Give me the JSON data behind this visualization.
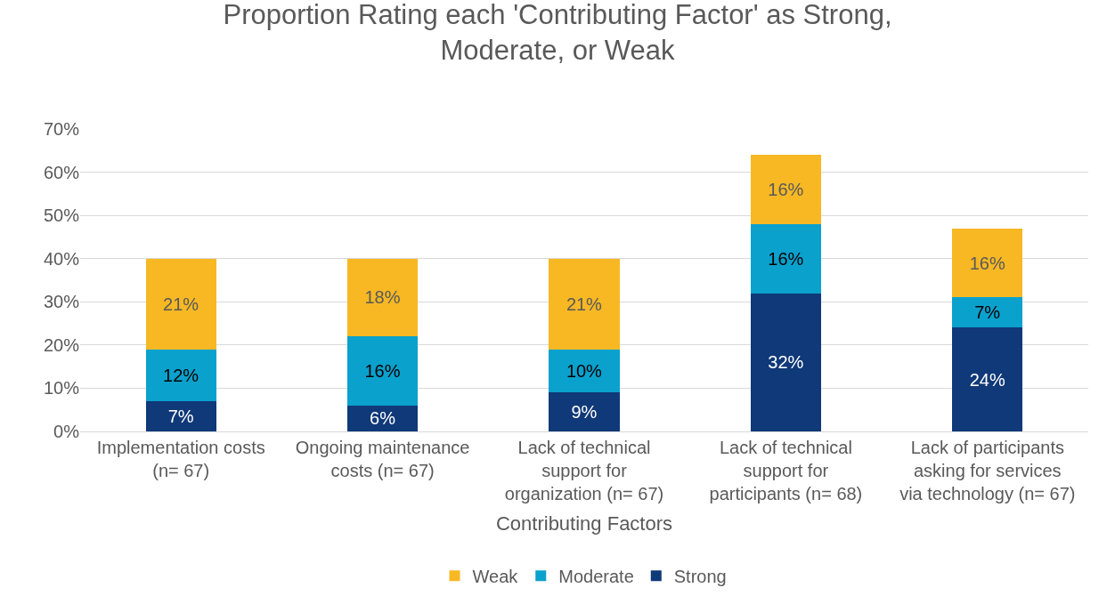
{
  "chart_data": {
    "type": "bar",
    "stacked": true,
    "title": "Proportion Rating each 'Contributing Factor' as Strong, Moderate, or Weak",
    "xlabel": "Contributing Factors",
    "categories": [
      "Implementation costs (n= 67)",
      "Ongoing maintenance costs (n= 67)",
      "Lack of technical support for organization (n= 67)",
      "Lack of technical support for participants (n= 68)",
      "Lack of participants asking for services via technology (n= 67)"
    ],
    "series": [
      {
        "name": "Strong",
        "color": "#0f3978",
        "values": [
          7,
          6,
          9,
          32,
          24
        ],
        "value_labels": [
          "7%",
          "6%",
          "9%",
          "32%",
          "24%"
        ]
      },
      {
        "name": "Moderate",
        "color": "#0aa1cd",
        "values": [
          12,
          16,
          10,
          16,
          7
        ],
        "value_labels": [
          "12%",
          "16%",
          "10%",
          "16%",
          "7%"
        ]
      },
      {
        "name": "Weak",
        "color": "#f7b824",
        "values": [
          21,
          18,
          21,
          16,
          16
        ],
        "value_labels": [
          "21%",
          "18%",
          "21%",
          "16%",
          "16%"
        ]
      }
    ],
    "ylim": [
      0,
      70
    ],
    "yticks": [
      {
        "value": 0,
        "label": "0%"
      },
      {
        "value": 10,
        "label": "10%"
      },
      {
        "value": 20,
        "label": "20%"
      },
      {
        "value": 30,
        "label": "30%"
      },
      {
        "value": 40,
        "label": "40%"
      },
      {
        "value": 50,
        "label": "50%"
      },
      {
        "value": 60,
        "label": "60%"
      },
      {
        "value": 70,
        "label": "70%"
      }
    ],
    "grid": "y",
    "legend": "bottom"
  }
}
